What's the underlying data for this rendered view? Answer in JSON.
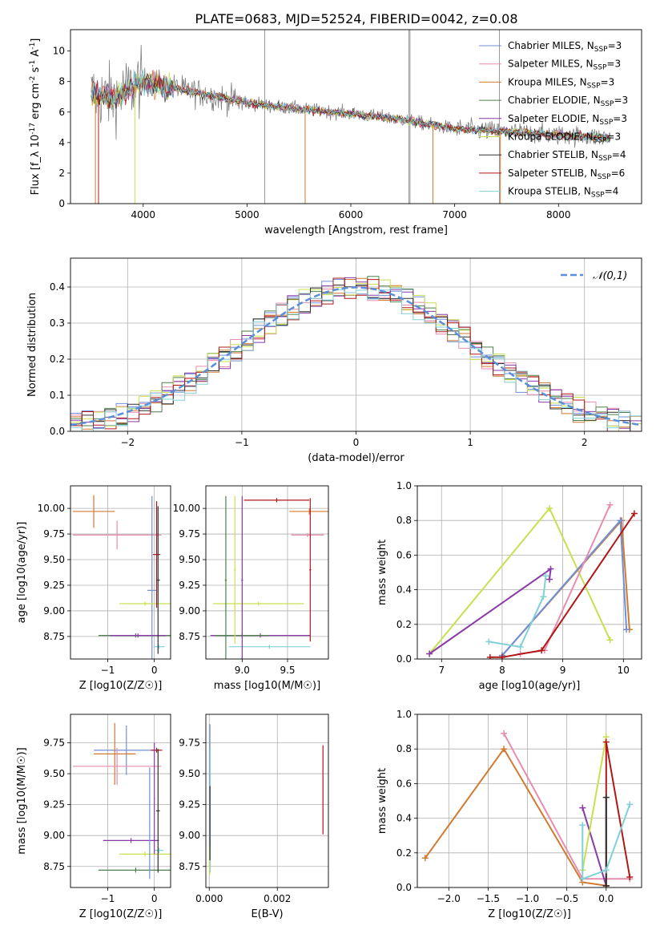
{
  "figure_title": "PLATE=0683, MJD=52524, FIBERID=0042, z=0.08",
  "colors": {
    "Chabrier MILES": "#6f8fd8",
    "Salpeter MILES": "#e88cb0",
    "Kroupa MILES": "#d07a30",
    "Chabrier ELODIE": "#4f7f4f",
    "Salpeter ELODIE": "#8a3aa8",
    "Kroupa ELODIE": "#c8e050",
    "Chabrier STELIB": "#303030",
    "Salpeter STELIB": "#b01818",
    "Kroupa STELIB": "#80d0d8",
    "data": "#808080",
    "normal": "#5b8fd8"
  },
  "chart_data": [
    {
      "id": "spectrum",
      "type": "line",
      "title": "PLATE=0683, MJD=52524, FIBERID=0042, z=0.08",
      "xlabel": "wavelength [Angstrom, rest frame]",
      "ylabel": "Flux [f_λ 10^-17 erg cm^-2 s^-1 A^-1]",
      "xlim": [
        3300,
        8800
      ],
      "ylim": [
        0,
        11.4
      ],
      "xticks": [
        4000,
        5000,
        6000,
        7000,
        8000
      ],
      "yticks": [
        0,
        2,
        4,
        6,
        8,
        10
      ],
      "grid": false,
      "legend_position": "top-right",
      "legend": [
        "Chabrier MILES, N_SSP=3",
        "Salpeter MILES, N_SSP=3",
        "Kroupa MILES, N_SSP=3",
        "Chabrier ELODIE, N_SSP=3",
        "Salpeter ELODIE, N_SSP=3",
        "Kroupa ELODIE, N_SSP=3",
        "Chabrier STELIB, N_SSP=4",
        "Salpeter STELIB, N_SSP=6",
        "Kroupa STELIB, N_SSP=4"
      ],
      "continuum": {
        "x": [
          3500,
          3700,
          4000,
          4500,
          5000,
          5500,
          6000,
          6500,
          7000,
          7500,
          8000,
          8500
        ],
        "y": [
          7.2,
          6.9,
          8.0,
          7.3,
          6.6,
          6.2,
          5.9,
          5.5,
          4.9,
          4.7,
          4.5,
          4.3
        ]
      }
    },
    {
      "id": "residuals",
      "type": "histogram",
      "xlabel": "(data-model)/error",
      "ylabel": "Normed distribution",
      "xlim": [
        -2.5,
        2.5
      ],
      "ylim": [
        0,
        0.48
      ],
      "xticks": [
        -2,
        -1,
        0,
        1,
        2
      ],
      "yticks": [
        0.0,
        0.1,
        0.2,
        0.3,
        0.4
      ],
      "grid": true,
      "legend_position": "top-right",
      "legend": [
        "𝒩(0,1)"
      ],
      "bin_width": 0.1
    },
    {
      "id": "age-vs-Z",
      "type": "errorbar",
      "xlabel": "Z [log10(Z/Z☉)]",
      "ylabel": "age [log10(age/yr)]",
      "xlim": [
        -1.8,
        0.35
      ],
      "ylim": [
        8.53,
        10.22
      ],
      "xticks": [
        -1,
        0
      ],
      "yticks": [
        8.75,
        9.0,
        9.25,
        9.5,
        9.75,
        10.0
      ],
      "grid": true,
      "points": [
        {
          "series": "Salpeter MILES",
          "x": -0.8,
          "y": 9.74,
          "xerr": 0.95,
          "yerr": 0.14
        },
        {
          "series": "Kroupa MILES",
          "x": -1.3,
          "y": 9.97,
          "xerr": 0.45,
          "yerr": 0.16
        },
        {
          "series": "Chabrier MILES",
          "x": -0.05,
          "y": 9.2,
          "xerr": 0.1,
          "yerr": 0.92
        },
        {
          "series": "Kroupa ELODIE",
          "x": -0.2,
          "y": 9.07,
          "xerr": 0.55,
          "yerr": 0.02
        },
        {
          "series": "Chabrier ELODIE",
          "x": -0.4,
          "y": 8.76,
          "xerr": 0.8,
          "yerr": 0.02
        },
        {
          "series": "Salpeter ELODIE",
          "x": -0.35,
          "y": 8.76,
          "xerr": 0.6,
          "yerr": 0.02
        },
        {
          "series": "Kroupa STELIB",
          "x": 0.1,
          "y": 8.65,
          "xerr": 0.12,
          "yerr": 0.02
        },
        {
          "series": "Salpeter STELIB",
          "x": 0.05,
          "y": 9.55,
          "xerr": 0.08,
          "yerr": 0.52
        },
        {
          "series": "Chabrier STELIB",
          "x": 0.08,
          "y": 9.3,
          "xerr": 0.04,
          "yerr": 0.72
        }
      ]
    },
    {
      "id": "age-vs-mass",
      "type": "errorbar",
      "xlabel": "mass [log10(M/M☉)]",
      "ylabel": "",
      "xlim": [
        8.6,
        9.95
      ],
      "ylim": [
        8.53,
        10.22
      ],
      "xticks": [
        9.0,
        9.5
      ],
      "yticks": [
        8.75,
        9.0,
        9.25,
        9.5,
        9.75,
        10.0
      ],
      "grid": true,
      "points": [
        {
          "series": "Salpeter STELIB",
          "x": 9.38,
          "y": 10.08,
          "xerr": 0.36,
          "yerr": 0.02
        },
        {
          "series": "Kroupa MILES",
          "x": 9.74,
          "y": 9.97,
          "xerr": 0.22,
          "yerr": 0.03
        },
        {
          "series": "Salpeter MILES",
          "x": 9.72,
          "y": 9.74,
          "xerr": 0.18,
          "yerr": 0.02
        },
        {
          "series": "Kroupa ELODIE",
          "x": 9.18,
          "y": 9.07,
          "xerr": 0.5,
          "yerr": 0.02
        },
        {
          "series": "Salpeter ELODIE",
          "x": 9.2,
          "y": 8.76,
          "xerr": 0.55,
          "yerr": 0.02
        },
        {
          "series": "Chabrier ELODIE",
          "x": 9.0,
          "y": 8.76,
          "xerr": 0.3,
          "yerr": 0.02
        },
        {
          "series": "Kroupa STELIB",
          "x": 9.3,
          "y": 8.65,
          "xerr": 0.45,
          "yerr": 0.02
        },
        {
          "series": "Chabrier ELODIE",
          "x": 8.82,
          "y": 9.3,
          "xerr": 0.01,
          "yerr": 0.82
        },
        {
          "series": "Kroupa ELODIE",
          "x": 8.92,
          "y": 9.4,
          "xerr": 0.01,
          "yerr": 0.72
        },
        {
          "series": "Salpeter ELODIE",
          "x": 9.0,
          "y": 9.3,
          "xerr": 0.01,
          "yerr": 0.82
        },
        {
          "series": "Salpeter STELIB",
          "x": 9.75,
          "y": 9.4,
          "xerr": 0.01,
          "yerr": 0.7
        }
      ]
    },
    {
      "id": "weight-vs-age",
      "type": "line",
      "xlabel": "age [log10(age/yr)]",
      "ylabel": "mass weight",
      "xlim": [
        6.6,
        10.3
      ],
      "ylim": [
        0.0,
        1.0
      ],
      "xticks": [
        7,
        8,
        9,
        10
      ],
      "yticks": [
        0.0,
        0.2,
        0.4,
        0.6,
        0.8,
        1.0
      ],
      "grid": true,
      "series": [
        {
          "name": "Kroupa ELODIE",
          "x": [
            6.8,
            8.78,
            9.78
          ],
          "y": [
            0.03,
            0.87,
            0.11
          ]
        },
        {
          "name": "Salpeter ELODIE",
          "x": [
            6.8,
            8.8,
            8.78
          ],
          "y": [
            0.03,
            0.52,
            0.46
          ]
        },
        {
          "name": "Kroupa MILES",
          "x": [
            8.0,
            9.97,
            10.1
          ],
          "y": [
            0.02,
            0.8,
            0.17
          ]
        },
        {
          "name": "Chabrier MILES",
          "x": [
            8.0,
            9.95,
            10.05
          ],
          "y": [
            0.02,
            0.8,
            0.17
          ]
        },
        {
          "name": "Salpeter MILES",
          "x": [
            8.3,
            8.7,
            9.78
          ],
          "y": [
            0.03,
            0.05,
            0.89
          ]
        },
        {
          "name": "Salpeter STELIB",
          "x": [
            7.8,
            8.0,
            8.65,
            10.18
          ],
          "y": [
            0.01,
            0.01,
            0.05,
            0.84
          ]
        },
        {
          "name": "Kroupa STELIB",
          "x": [
            7.78,
            8.3,
            8.68,
            8.72
          ],
          "y": [
            0.1,
            0.07,
            0.36,
            0.48
          ]
        }
      ]
    },
    {
      "id": "mass-vs-Z",
      "type": "errorbar",
      "xlabel": "Z [log10(Z/Z☉)]",
      "ylabel": "mass [log10(M/M☉)]",
      "xlim": [
        -1.8,
        0.35
      ],
      "ylim": [
        8.58,
        9.98
      ],
      "xticks": [
        -1,
        0
      ],
      "yticks": [
        8.75,
        9.0,
        9.25,
        9.5,
        9.75
      ],
      "grid": true,
      "points": [
        {
          "series": "Chabrier MILES",
          "x": -0.6,
          "y": 9.69,
          "xerr": 0.7,
          "yerr": 0.2
        },
        {
          "series": "Kroupa MILES",
          "x": -0.85,
          "y": 9.66,
          "xerr": 0.45,
          "yerr": 0.25
        },
        {
          "series": "Salpeter MILES",
          "x": -0.8,
          "y": 9.56,
          "xerr": 0.95,
          "yerr": 0.15
        },
        {
          "series": "Salpeter ELODIE",
          "x": -0.5,
          "y": 8.96,
          "xerr": 0.6,
          "yerr": 0.02
        },
        {
          "series": "Kroupa ELODIE",
          "x": -0.2,
          "y": 8.85,
          "xerr": 0.55,
          "yerr": 0.02
        },
        {
          "series": "Chabrier ELODIE",
          "x": -0.4,
          "y": 8.72,
          "xerr": 0.8,
          "yerr": 0.02
        },
        {
          "series": "Kroupa STELIB",
          "x": 0.1,
          "y": 8.88,
          "xerr": 0.1,
          "yerr": 0.02
        },
        {
          "series": "Salpeter STELIB",
          "x": 0.05,
          "y": 9.69,
          "xerr": 0.12,
          "yerr": 0.02
        },
        {
          "series": "Chabrier STELIB",
          "x": 0.08,
          "y": 9.2,
          "xerr": 0.04,
          "yerr": 0.5
        },
        {
          "series": "Salpeter ELODIE",
          "x": 0.0,
          "y": 9.3,
          "xerr": 0.01,
          "yerr": 0.45
        },
        {
          "series": "Chabrier MILES",
          "x": -0.1,
          "y": 9.1,
          "xerr": 0.01,
          "yerr": 0.45
        }
      ]
    },
    {
      "id": "mass-vs-EBV",
      "type": "errorbar",
      "xlabel": "E(B-V)",
      "ylabel": "",
      "xlim": [
        -0.0001,
        0.0035
      ],
      "ylim": [
        8.58,
        9.98
      ],
      "xticks": [
        0.0,
        0.002
      ],
      "yticks": [
        8.75,
        9.0,
        9.25,
        9.5,
        9.75
      ],
      "grid": true,
      "points": [
        {
          "series": "Salpeter STELIB",
          "x": 0.00334,
          "y": 9.37,
          "xerr": 0.0,
          "yerr": 0.36
        },
        {
          "series": "Chabrier MILES",
          "x": 2e-05,
          "y": 9.5,
          "xerr": 0.0,
          "yerr": 0.4
        },
        {
          "series": "Kroupa STELIB",
          "x": 3e-05,
          "y": 9.2,
          "xerr": 0.0,
          "yerr": 0.5
        },
        {
          "series": "Kroupa ELODIE",
          "x": 1e-05,
          "y": 8.8,
          "xerr": 0.0,
          "yerr": 0.12
        },
        {
          "series": "Chabrier STELIB",
          "x": 2e-05,
          "y": 9.1,
          "xerr": 0.0,
          "yerr": 0.3
        }
      ]
    },
    {
      "id": "weight-vs-Z",
      "type": "line",
      "xlabel": "Z [log10(Z/Z☉)]",
      "ylabel": "mass weight",
      "xlim": [
        -2.4,
        0.45
      ],
      "ylim": [
        0.0,
        1.0
      ],
      "xticks": [
        -2.0,
        -1.5,
        -1.0,
        -0.5,
        0.0
      ],
      "yticks": [
        0.0,
        0.2,
        0.4,
        0.6,
        0.8,
        1.0
      ],
      "grid": true,
      "series": [
        {
          "name": "Kroupa MILES",
          "x": [
            -2.3,
            -1.3,
            -0.3,
            0.0
          ],
          "y": [
            0.17,
            0.8,
            0.03,
            0.01
          ]
        },
        {
          "name": "Salpeter MILES",
          "x": [
            -1.3,
            -0.3,
            0.3
          ],
          "y": [
            0.89,
            0.05,
            0.05
          ]
        },
        {
          "name": "Salpeter ELODIE",
          "x": [
            -0.3,
            0.0
          ],
          "y": [
            0.46,
            0.01
          ]
        },
        {
          "name": "Kroupa ELODIE",
          "x": [
            -0.3,
            0.0
          ],
          "y": [
            0.1,
            0.87
          ]
        },
        {
          "name": "Salpeter STELIB",
          "x": [
            0.0,
            0.0,
            0.3
          ],
          "y": [
            0.01,
            0.84,
            0.06
          ]
        },
        {
          "name": "Chabrier STELIB",
          "x": [
            0.0,
            0.0
          ],
          "y": [
            0.52,
            0.01
          ]
        },
        {
          "name": "Kroupa STELIB",
          "x": [
            -0.3,
            -0.3,
            0.0,
            0.3
          ],
          "y": [
            0.36,
            0.05,
            0.1,
            0.48
          ]
        }
      ]
    }
  ]
}
